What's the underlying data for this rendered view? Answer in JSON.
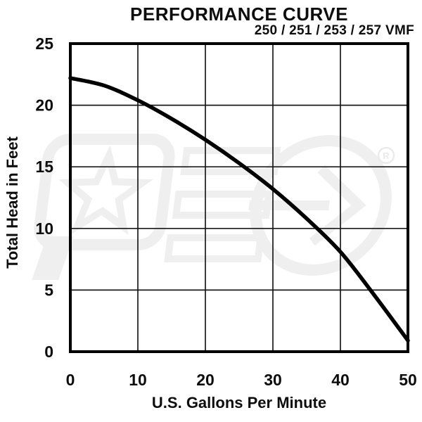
{
  "page": {
    "background": "#ffffff"
  },
  "chart_data": {
    "type": "line",
    "title": "PERFORMANCE CURVE",
    "subtitle": "250 / 251 / 253 / 257 VMF",
    "xlabel": "U.S. Gallons Per Minute",
    "ylabel": "Total Head in Feet",
    "xlim": [
      0,
      50
    ],
    "ylim": [
      0,
      25
    ],
    "xticks": [
      0,
      10,
      20,
      30,
      40,
      50
    ],
    "yticks": [
      0,
      5,
      10,
      15,
      20,
      25
    ],
    "grid": true,
    "legend": false,
    "series": [
      {
        "name": "pump-head-capacity-curve",
        "color": "#000000",
        "points": [
          [
            0,
            22.2
          ],
          [
            5,
            21.6
          ],
          [
            10,
            20.4
          ],
          [
            15,
            18.9
          ],
          [
            20,
            17.2
          ],
          [
            25,
            15.3
          ],
          [
            30,
            13.2
          ],
          [
            35,
            10.8
          ],
          [
            40,
            8.1
          ],
          [
            45,
            4.6
          ],
          [
            50,
            0.9
          ]
        ]
      }
    ]
  },
  "watermark": {
    "letters": "PED",
    "registered_mark": "®",
    "color": "#efefef"
  },
  "colors": {
    "grid": "#1a1a1a",
    "border": "#000000",
    "text": "#0d0d0d"
  }
}
